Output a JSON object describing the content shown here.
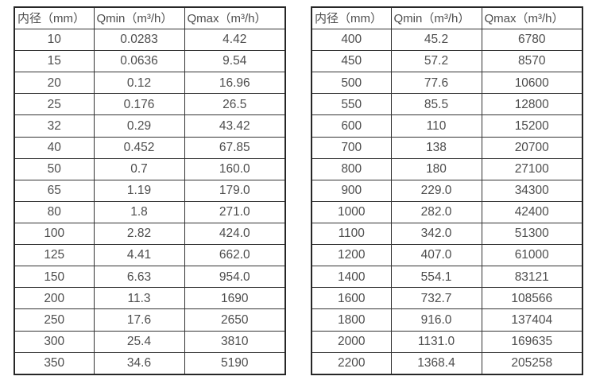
{
  "colors": {
    "text": "#4d4d4d",
    "border": "#333333",
    "outer_border": "#272727",
    "background": "#ffffff"
  },
  "chart_data": [
    {
      "type": "table",
      "columns": [
        "内径（mm）",
        "Qmin（m³/h）",
        "Qmax（m³/h）"
      ],
      "rows": [
        [
          "10",
          "0.0283",
          "4.42"
        ],
        [
          "15",
          "0.0636",
          "9.54"
        ],
        [
          "20",
          "0.12",
          "16.96"
        ],
        [
          "25",
          "0.176",
          "26.5"
        ],
        [
          "32",
          "0.29",
          "43.42"
        ],
        [
          "40",
          "0.452",
          "67.85"
        ],
        [
          "50",
          "0.7",
          "160.0"
        ],
        [
          "65",
          "1.19",
          "179.0"
        ],
        [
          "80",
          "1.8",
          "271.0"
        ],
        [
          "100",
          "2.82",
          "424.0"
        ],
        [
          "125",
          "4.41",
          "662.0"
        ],
        [
          "150",
          "6.63",
          "954.0"
        ],
        [
          "200",
          "11.3",
          "1690"
        ],
        [
          "250",
          "17.6",
          "2650"
        ],
        [
          "300",
          "25.4",
          "3810"
        ],
        [
          "350",
          "34.6",
          "5190"
        ]
      ]
    },
    {
      "type": "table",
      "columns": [
        "内径（mm）",
        "Qmin（m³/h）",
        "Qmax（m³/h）"
      ],
      "rows": [
        [
          "400",
          "45.2",
          "6780"
        ],
        [
          "450",
          "57.2",
          "8570"
        ],
        [
          "500",
          "77.6",
          "10600"
        ],
        [
          "550",
          "85.5",
          "12800"
        ],
        [
          "600",
          "110",
          "15200"
        ],
        [
          "700",
          "138",
          "20700"
        ],
        [
          "800",
          "180",
          "27100"
        ],
        [
          "900",
          "229.0",
          "34300"
        ],
        [
          "1000",
          "282.0",
          "42400"
        ],
        [
          "1100",
          "342.0",
          "51300"
        ],
        [
          "1200",
          "407.0",
          "61000"
        ],
        [
          "1400",
          "554.1",
          "83121"
        ],
        [
          "1600",
          "732.7",
          "108566"
        ],
        [
          "1800",
          "916.0",
          "137404"
        ],
        [
          "2000",
          "1131.0",
          "169635"
        ],
        [
          "2200",
          "1368.4",
          "205258"
        ]
      ]
    }
  ]
}
